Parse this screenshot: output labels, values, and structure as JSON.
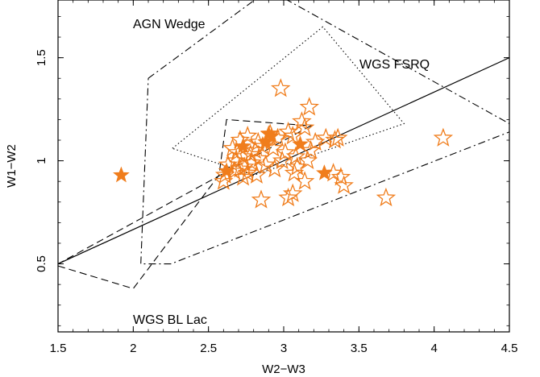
{
  "chart_data": {
    "type": "scatter",
    "xlabel": "W2−W3",
    "ylabel": "W1−W2",
    "xlim": [
      1.5,
      4.5
    ],
    "ylim": [
      0.17,
      1.78
    ],
    "x_ticks": [
      "1.5",
      "2",
      "2.5",
      "3",
      "3.5",
      "4",
      "4.5"
    ],
    "x_tick_values": [
      1.5,
      2,
      2.5,
      3,
      3.5,
      4,
      4.5
    ],
    "y_ticks": [
      "0.5",
      "1",
      "1.5"
    ],
    "y_tick_values": [
      0.5,
      1.0,
      1.5
    ],
    "grid": false,
    "marker_color": "#f07d1c",
    "regions": [
      {
        "label": "AGN Wedge",
        "style": "dash-dot",
        "points": [
          [
            2.1,
            1.4
          ],
          [
            2.9,
            1.83
          ],
          [
            4.5,
            1.18
          ],
          [
            4.5,
            1.14
          ],
          [
            2.25,
            0.5
          ],
          [
            2.05,
            0.5
          ],
          [
            2.1,
            1.4
          ]
        ]
      },
      {
        "label": "WGS FSRQ",
        "style": "dotted",
        "points": [
          [
            2.26,
            1.06
          ],
          [
            3.26,
            1.65
          ],
          [
            3.8,
            1.18
          ],
          [
            2.8,
            0.93
          ],
          [
            2.26,
            1.06
          ]
        ]
      },
      {
        "label": "WGS BL Lac",
        "style": "dashed",
        "points": [
          [
            1.5,
            0.49
          ],
          [
            2.0,
            0.38
          ],
          [
            2.57,
            0.93
          ],
          [
            2.62,
            1.2
          ],
          [
            3.18,
            1.17
          ],
          [
            1.5,
            0.5
          ]
        ]
      }
    ],
    "reference_line": {
      "style": "solid",
      "x": [
        1.5,
        4.5
      ],
      "y": [
        0.5,
        1.5
      ]
    },
    "series": [
      {
        "marker": "star-open",
        "x": [
          2.98,
          3.17,
          3.12,
          2.71,
          2.76,
          2.83,
          2.91,
          2.96,
          3.03,
          3.06,
          3.14,
          3.21,
          3.28,
          3.34,
          3.36,
          2.66,
          2.69,
          2.73,
          2.78,
          2.81,
          2.86,
          2.93,
          3.01,
          3.08,
          3.18,
          2.63,
          2.68,
          2.74,
          2.79,
          2.84,
          2.88,
          2.94,
          2.99,
          3.09,
          3.16,
          2.61,
          2.67,
          2.71,
          2.76,
          2.82,
          3.07,
          3.14,
          3.33,
          3.38,
          3.4,
          2.85,
          3.03,
          3.06,
          3.68,
          4.06,
          2.6,
          2.73
        ],
        "y": [
          1.35,
          1.26,
          1.19,
          1.1,
          1.12,
          1.09,
          1.13,
          1.11,
          1.14,
          1.12,
          1.16,
          1.09,
          1.11,
          1.1,
          1.11,
          1.06,
          1.04,
          1.02,
          1.03,
          1.05,
          1.07,
          1.06,
          1.04,
          1.02,
          1.05,
          0.98,
          1.0,
          0.97,
          0.99,
          1.01,
          0.98,
          0.96,
          1.0,
          0.97,
          1.0,
          0.93,
          0.95,
          0.96,
          0.94,
          0.93,
          0.94,
          0.9,
          0.94,
          0.92,
          0.88,
          0.81,
          0.82,
          0.84,
          0.82,
          1.11,
          0.9,
          0.92
        ]
      },
      {
        "marker": "star-filled",
        "x": [
          1.92,
          2.62,
          2.73,
          2.88,
          2.9,
          2.92,
          3.11,
          3.27
        ],
        "y": [
          0.93,
          0.95,
          1.07,
          1.09,
          1.13,
          1.12,
          1.08,
          0.94
        ]
      }
    ],
    "annotations": [
      "AGN Wedge",
      "WGS FSRQ",
      "WGS BL Lac"
    ]
  }
}
